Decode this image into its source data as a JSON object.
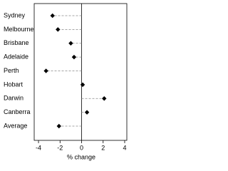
{
  "chart_data": {
    "type": "dot",
    "categories": [
      "Sydney",
      "Melbourne",
      "Brisbane",
      "Adelaide",
      "Perth",
      "Hobart",
      "Darwin",
      "Canberra",
      "Average"
    ],
    "values": [
      -2.7,
      -2.2,
      -1.0,
      -0.7,
      -3.3,
      0.1,
      2.1,
      0.5,
      -2.1
    ],
    "color": "#000000",
    "xlim": [
      -4.4,
      4.2
    ],
    "xticks": [
      -4,
      -2,
      0,
      2,
      4
    ],
    "xlabel": "% change"
  }
}
